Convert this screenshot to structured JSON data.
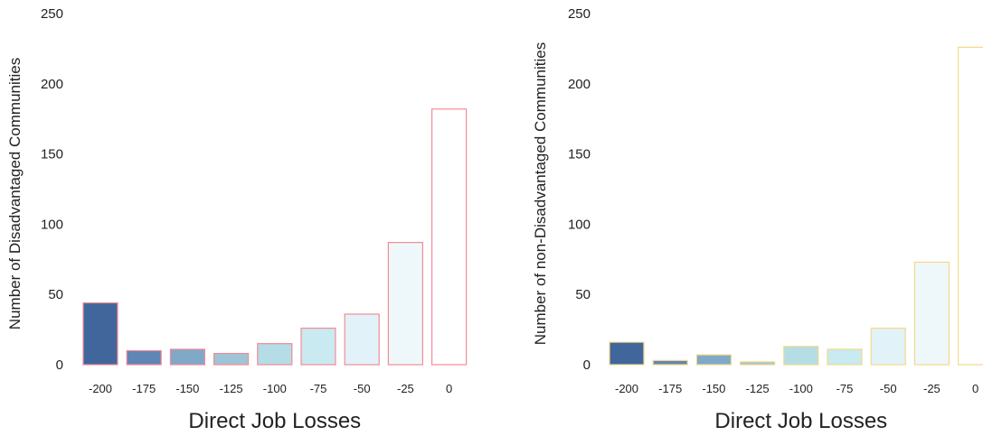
{
  "chart_data": [
    {
      "type": "bar",
      "categories": [
        "-200",
        "-175",
        "-150",
        "-125",
        "-100",
        "-75",
        "-50",
        "-25",
        "0"
      ],
      "values": [
        44,
        10,
        11,
        8,
        15,
        26,
        36,
        87,
        182
      ],
      "xlabel": "Direct Job Losses",
      "ylabel": "Number of Disadvantaged Communities",
      "ylim": [
        0,
        250
      ],
      "yticks": [
        "0",
        "50",
        "100",
        "150",
        "200",
        "250"
      ],
      "grid": false,
      "edge_color": "#f28b96",
      "fill_colors": [
        "#41669b",
        "#5f86b4",
        "#7fa9c7",
        "#9fc4d7",
        "#b5dde6",
        "#c8eaf0",
        "#e1f3f8",
        "#eef8fa",
        "#ffffff"
      ]
    },
    {
      "type": "bar",
      "categories": [
        "-200",
        "-175",
        "-150",
        "-125",
        "-100",
        "-75",
        "-50",
        "-25",
        "0"
      ],
      "values": [
        16,
        3,
        7,
        2,
        13,
        11,
        26,
        73,
        226
      ],
      "xlabel": "Direct Job Losses",
      "ylabel": "Number of non-Disadvantaged Communities",
      "ylim": [
        0,
        250
      ],
      "yticks": [
        "0",
        "50",
        "100",
        "150",
        "200",
        "250"
      ],
      "grid": false,
      "edge_color": "#f3d98a",
      "fill_colors": [
        "#41669b",
        "#5f86b4",
        "#7fa9c7",
        "#9fc4d7",
        "#b5dde6",
        "#c8eaf0",
        "#e1f3f8",
        "#eef8fa",
        "#ffffff"
      ]
    }
  ]
}
